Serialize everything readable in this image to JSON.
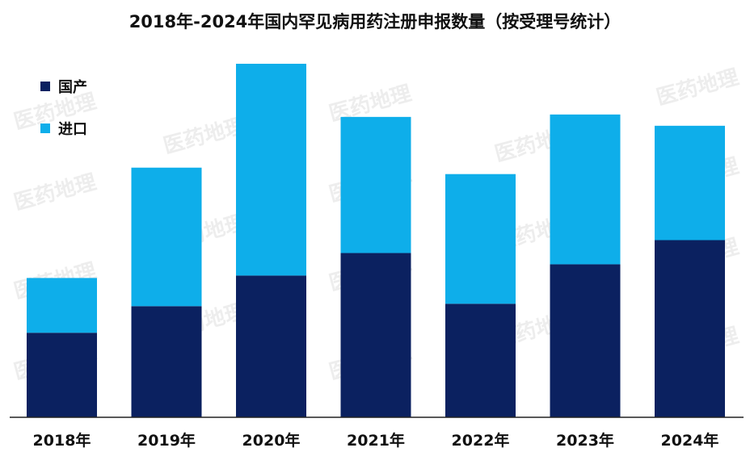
{
  "chart_data": {
    "type": "bar",
    "stacked": true,
    "title": "2018年-2024年国内罕见病用药注册申报数量（按受理号统计）",
    "xlabel": "",
    "ylabel": "",
    "categories": [
      "2018年",
      "2019年",
      "2020年",
      "2021年",
      "2022年",
      "2023年",
      "2024年"
    ],
    "series": [
      {
        "name": "国产",
        "color": "#0b2160",
        "values": [
          105,
          138,
          176,
          204,
          141,
          190,
          220
        ]
      },
      {
        "name": "进口",
        "color": "#0eaeea",
        "values": [
          68,
          172,
          263,
          169,
          161,
          186,
          142
        ]
      }
    ],
    "ylim": [
      0,
      439
    ],
    "grid": false,
    "y_axis_shown": false,
    "legend_position": "top-left"
  },
  "watermark": "医药地理"
}
